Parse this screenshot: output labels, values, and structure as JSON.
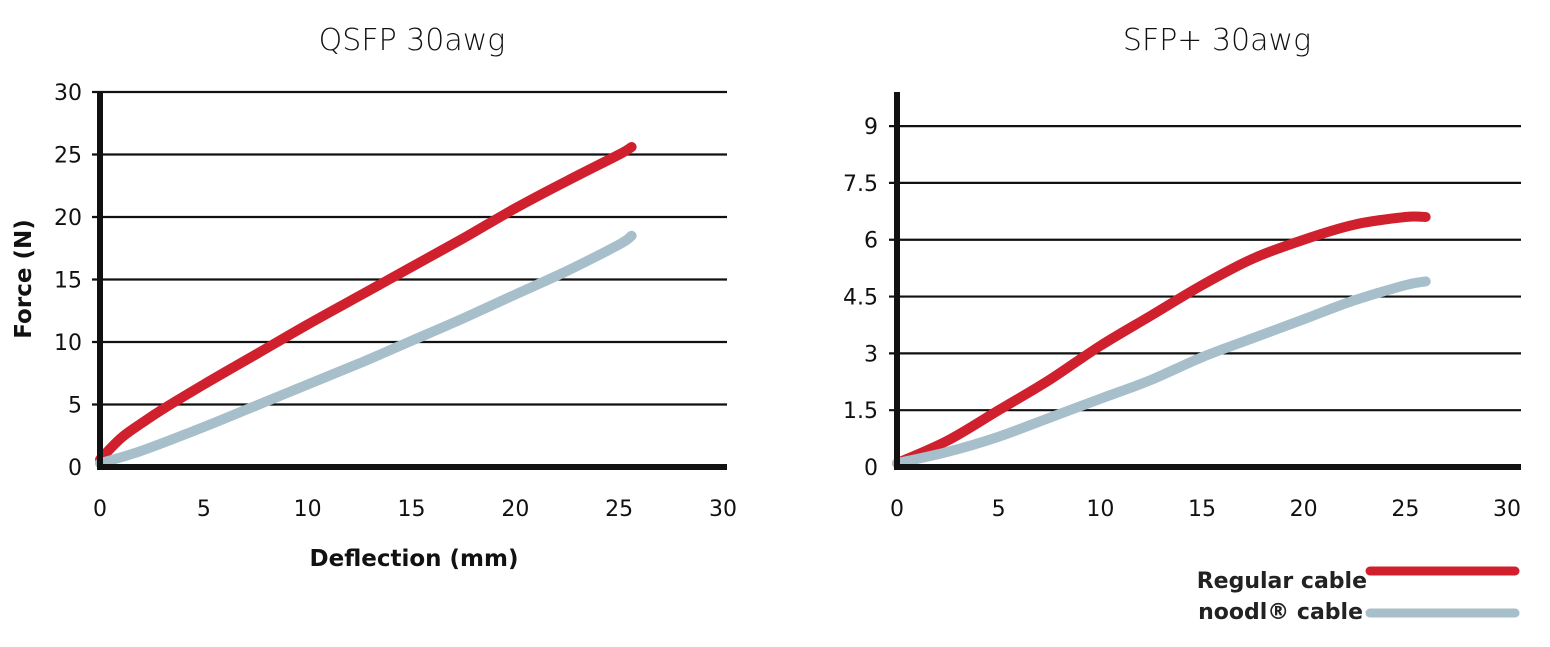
{
  "chart_data": [
    {
      "type": "line",
      "title": "QSFP 30awg",
      "xlabel": "Deflection (mm)",
      "ylabel": "Force (N)",
      "xlim": [
        0,
        30
      ],
      "ylim": [
        0,
        30
      ],
      "xticks": [
        "0",
        "5",
        "10",
        "15",
        "20",
        "25",
        "30"
      ],
      "yticks": [
        "0",
        "5",
        "10",
        "15",
        "20",
        "25",
        "30"
      ],
      "grid": true,
      "series": [
        {
          "name": "Regular cable",
          "color": "#d0202e",
          "x": [
            0,
            1,
            2,
            3,
            5,
            7.5,
            10,
            12.5,
            15,
            17.5,
            20,
            22.5,
            25,
            25.6
          ],
          "y": [
            0.6,
            2.3,
            3.5,
            4.6,
            6.6,
            9.0,
            11.4,
            13.7,
            16.0,
            18.3,
            20.7,
            22.9,
            25.0,
            25.6
          ]
        },
        {
          "name": "noodl® cable",
          "color": "#a6bfcb",
          "x": [
            0,
            2,
            5,
            7.5,
            10,
            12.5,
            15,
            17.5,
            20,
            22.5,
            25,
            25.6
          ],
          "y": [
            0.3,
            1.3,
            3.2,
            4.9,
            6.6,
            8.3,
            10.1,
            11.9,
            13.8,
            15.7,
            17.8,
            18.5
          ]
        }
      ]
    },
    {
      "type": "line",
      "title": "SFP+ 30awg",
      "xlabel": "",
      "ylabel": "",
      "xlim": [
        0,
        30
      ],
      "ylim": [
        0,
        9.9
      ],
      "xticks": [
        "0",
        "5",
        "10",
        "15",
        "20",
        "25",
        "30"
      ],
      "yticks": [
        "0",
        "1.5",
        "3",
        "4.5",
        "6",
        "7.5",
        "9"
      ],
      "grid": true,
      "series": [
        {
          "name": "Regular cable",
          "color": "#d0202e",
          "x": [
            0,
            2.5,
            5,
            7.5,
            10,
            12.5,
            15,
            17.5,
            20,
            22.5,
            25,
            26
          ],
          "y": [
            0.1,
            0.7,
            1.5,
            2.3,
            3.2,
            4.0,
            4.8,
            5.5,
            6.0,
            6.4,
            6.6,
            6.6
          ]
        },
        {
          "name": "noodl® cable",
          "color": "#a6bfcb",
          "x": [
            0,
            2.5,
            5,
            7.5,
            10,
            12.5,
            15,
            17.5,
            20,
            22.5,
            25,
            26
          ],
          "y": [
            0.1,
            0.4,
            0.8,
            1.3,
            1.8,
            2.3,
            2.9,
            3.4,
            3.9,
            4.4,
            4.8,
            4.9
          ]
        }
      ]
    }
  ],
  "legend": {
    "items": [
      {
        "label": "Regular cable",
        "color": "#d0202e"
      },
      {
        "label": "noodl® cable",
        "color": "#a6bfcb"
      }
    ]
  }
}
